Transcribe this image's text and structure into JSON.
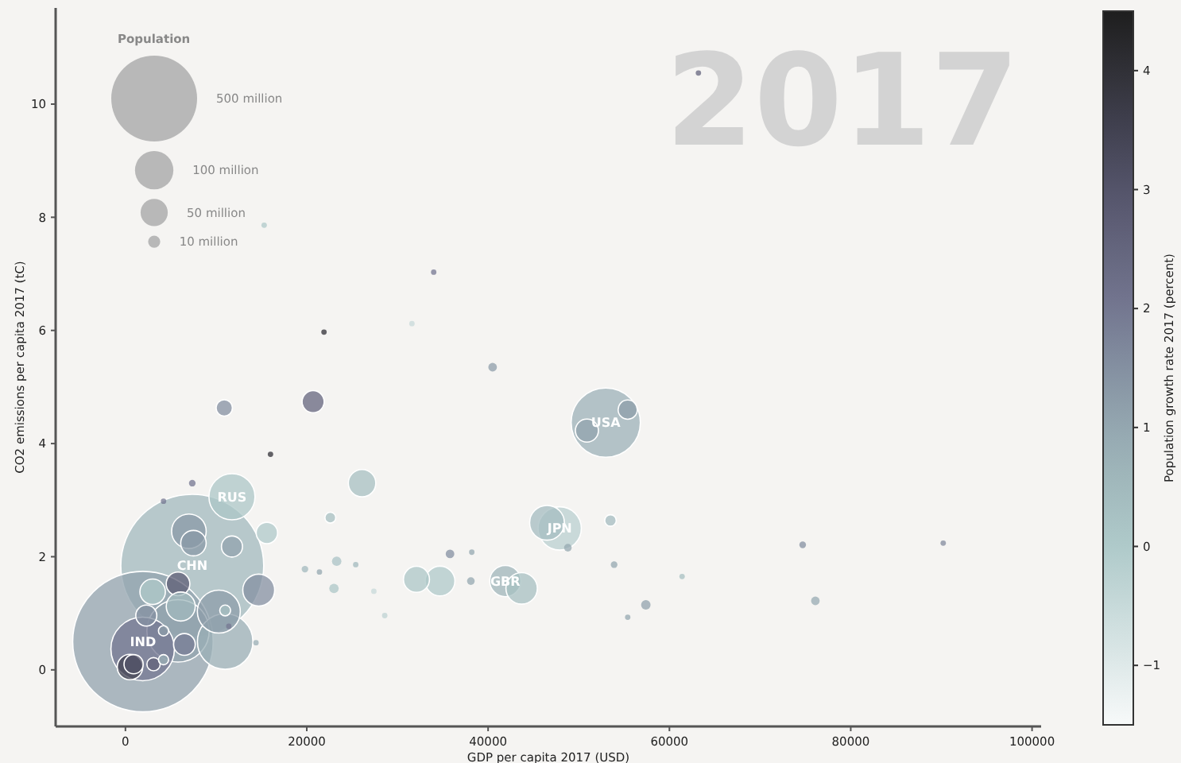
{
  "chart_data": {
    "type": "bubble",
    "xlabel": "GDP per capita 2017 (USD)",
    "ylabel": "CO2 emissions per capita 2017 (tC)",
    "clabel": "Population growth rate 2017 (percent)",
    "legend_title": "Population",
    "xlim": [
      -7700,
      101000
    ],
    "xticks": [
      0,
      20000,
      40000,
      60000,
      80000,
      100000
    ],
    "ylim": [
      -1,
      11.7
    ],
    "yticks": [
      0,
      2,
      4,
      6,
      8,
      10
    ],
    "clim": [
      -1.5,
      4.5
    ],
    "cticks": [
      {
        "value": -1,
        "label": "−1"
      },
      0,
      1,
      2,
      3,
      4
    ],
    "size_legend": [
      {
        "value": 500,
        "label": "500 million"
      },
      {
        "value": 100,
        "label": "100 million"
      },
      {
        "value": 50,
        "label": "50 million"
      },
      {
        "value": 10,
        "label": "10 million"
      }
    ],
    "series": [
      {
        "x": [
          7370,
          1930,
          5800,
          1900,
          11000,
          52980,
          11750,
          47900,
          46500,
          41900,
          43700,
          10300,
          50900,
          26100,
          34700,
          32100,
          5800,
          3000,
          6100,
          14700,
          7000,
          7500,
          500,
          6500,
          15600,
          11750,
          20700,
          2300,
          55400,
          11000,
          4200,
          10900,
          53500,
          76100,
          22600,
          40500,
          23300,
          23000,
          35800,
          38100,
          57400,
          900,
          3100,
          4200,
          48800,
          53900,
          74700,
          90200,
          61400,
          34000,
          38200,
          19800,
          7370,
          4200,
          63200,
          11400,
          14400,
          16000,
          21900,
          25400,
          21400,
          15300,
          31600,
          28600,
          27400,
          55400
        ],
        "values": [
          1.84,
          0.5,
          0.69,
          0.37,
          0.5,
          4.37,
          3.06,
          2.5,
          2.6,
          1.57,
          1.44,
          1.03,
          4.23,
          3.3,
          1.57,
          1.6,
          1.52,
          1.38,
          1.12,
          1.41,
          2.45,
          2.24,
          0.05,
          0.45,
          2.42,
          2.18,
          4.74,
          0.96,
          4.6,
          1.05,
          0.69,
          4.63,
          2.64,
          1.22,
          2.69,
          5.35,
          1.92,
          1.44,
          2.05,
          1.57,
          1.15,
          0.1,
          0.1,
          0.18,
          2.16,
          1.86,
          2.21,
          2.24,
          1.65,
          7.03,
          2.08,
          1.78,
          3.3,
          2.98,
          10.55,
          0.77,
          0.48,
          3.81,
          5.97,
          1.86,
          1.73,
          7.86,
          6.12,
          0.96,
          1.39,
          0.93
        ],
        "sizes": [
          1386,
          1339,
          264,
          274,
          209,
          325,
          144,
          127,
          82,
          66,
          67,
          125,
          36,
          51,
          60,
          46,
          38,
          44,
          57,
          69,
          81,
          44,
          44,
          32,
          31,
          30,
          33,
          30,
          25,
          8,
          7,
          18,
          9,
          5,
          8,
          5,
          6,
          6,
          5,
          4,
          6,
          25,
          12,
          7,
          4,
          3,
          3,
          2,
          2,
          2,
          2,
          3,
          3,
          2,
          2,
          2,
          2,
          2,
          2,
          2,
          2,
          2,
          2,
          2,
          2,
          2
        ],
        "cvalues": [
          0.5,
          1.1,
          1.1,
          2.0,
          0.8,
          0.7,
          0.1,
          -0.2,
          0.4,
          0.6,
          0.3,
          1.2,
          1.1,
          0.3,
          0.0,
          0.1,
          2.7,
          0.0,
          0.5,
          1.5,
          1.3,
          1.3,
          3.5,
          1.9,
          0.0,
          1.1,
          2.5,
          1.5,
          1.2,
          0.3,
          1.2,
          1.5,
          0.4,
          0.9,
          0.3,
          1.2,
          0.2,
          0.1,
          1.5,
          1.0,
          1.1,
          3.0,
          2.6,
          0.8,
          1.0,
          1.0,
          1.5,
          1.6,
          0.3,
          2.0,
          1.0,
          0.5,
          2.0,
          2.0,
          2.5,
          2.0,
          0.8,
          4.0,
          4.0,
          0.5,
          1.0,
          0.0,
          -0.5,
          -0.3,
          -0.5,
          1.0
        ]
      }
    ],
    "annotations": [
      {
        "text": "CHN",
        "x": 7370,
        "y": 1.84
      },
      {
        "text": "IND",
        "x": 1930,
        "y": 0.5
      },
      {
        "text": "USA",
        "x": 52980,
        "y": 4.37
      },
      {
        "text": "RUS",
        "x": 11750,
        "y": 3.06
      },
      {
        "text": "JPN",
        "x": 47900,
        "y": 2.5
      },
      {
        "text": "GBR",
        "x": 41900,
        "y": 1.57
      },
      "2017"
    ]
  }
}
